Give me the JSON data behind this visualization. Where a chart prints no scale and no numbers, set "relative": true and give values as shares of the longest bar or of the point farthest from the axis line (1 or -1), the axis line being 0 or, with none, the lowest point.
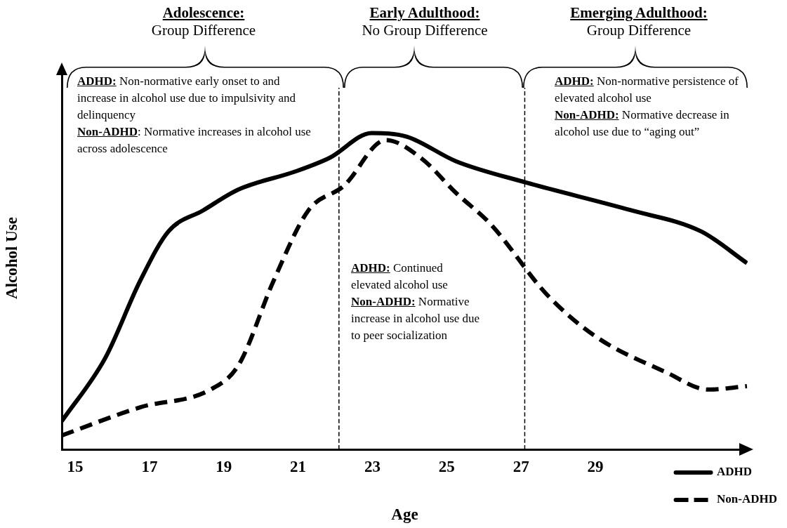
{
  "chart_data": {
    "type": "line",
    "relative": true,
    "xlabel": "Age",
    "ylabel": "Alcohol Use",
    "xlim": [
      14.64,
      33.1
    ],
    "xticks": [
      15,
      17,
      19,
      21,
      23,
      25,
      27,
      29
    ],
    "legend": "right",
    "grid": false,
    "marker": "none",
    "ref_lines": [
      {
        "axis": "x",
        "value": 22.1,
        "line_style": "dashed"
      },
      {
        "axis": "x",
        "value": 27.1,
        "line_style": "dashed"
      }
    ],
    "annotations": [
      "Adolescence:",
      "Group Difference",
      "Early Adulthood:",
      "No Group Difference",
      "Emerging Adulthood:",
      "Group Difference",
      "ADHD:",
      " Non-normative early onset to and increase in alcohol use due to impulsivity and delinquency",
      "Non-ADHD",
      ": Normative increases in alcohol use across adolescence",
      "ADHD:",
      " Continued elevated alcohol use",
      "Non-ADHD:",
      " Normative increase in alcohol use due to peer socialization",
      "ADHD:",
      " Non-normative persistence of elevated alcohol use",
      "Non-ADHD:",
      " Normative decrease in alcohol use due to “aging out”"
    ],
    "series": [
      {
        "name": "ADHD",
        "color": "#000000",
        "line_style": "solid",
        "x": [
          14.64,
          15.81,
          16.75,
          17.51,
          18.45,
          19.4,
          20.91,
          21.85,
          22.98,
          23.92,
          25.25,
          27.13,
          29.96,
          31.85,
          33.08
        ],
        "values": [
          0.089,
          0.289,
          0.533,
          0.689,
          0.756,
          0.822,
          0.878,
          0.922,
          1,
          0.989,
          0.911,
          0.844,
          0.756,
          0.689,
          0.589
        ]
      },
      {
        "name": "Non-ADHD",
        "color": "#000000",
        "line_style": "dashed",
        "x": [
          14.64,
          16.75,
          18.64,
          19.4,
          20.34,
          21.28,
          22.23,
          23.36,
          24.3,
          25.25,
          26.19,
          27.7,
          29.02,
          30.9,
          32.04,
          33.08
        ],
        "values": [
          0.044,
          0.133,
          0.189,
          0.267,
          0.533,
          0.756,
          0.833,
          0.978,
          0.922,
          0.811,
          0.711,
          0.489,
          0.356,
          0.244,
          0.189,
          0.2
        ]
      }
    ]
  }
}
